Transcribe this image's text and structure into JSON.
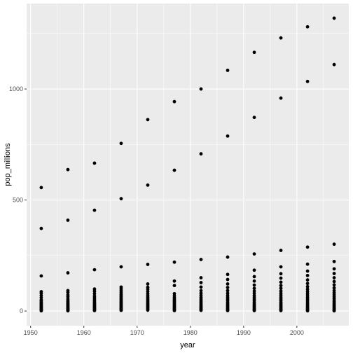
{
  "chart_data": {
    "type": "scatter",
    "title": "",
    "xlabel": "year",
    "ylabel": "pop_millions",
    "xlim": [
      1949.25,
      2009.75
    ],
    "ylim": [
      -66,
      1385
    ],
    "x_ticks": [
      1950,
      1960,
      1970,
      1980,
      1990,
      2000
    ],
    "y_ticks": [
      0,
      500,
      1000
    ],
    "grid": true,
    "legend": "none",
    "colors": {
      "panel": "#ebebeb",
      "grid": "#ffffff",
      "point": "#000000"
    },
    "series": [
      {
        "points": [
          [
            1952,
            556
          ],
          [
            1952,
            372
          ],
          [
            1952,
            158
          ],
          [
            1952,
            87
          ],
          [
            1952,
            80
          ],
          [
            1952,
            70
          ],
          [
            1952,
            60
          ],
          [
            1952,
            50
          ],
          [
            1952,
            46
          ],
          [
            1952,
            40
          ],
          [
            1952,
            36
          ],
          [
            1952,
            32
          ],
          [
            1952,
            28
          ],
          [
            1952,
            24
          ],
          [
            1952,
            20
          ],
          [
            1952,
            17
          ],
          [
            1952,
            14
          ],
          [
            1952,
            11
          ],
          [
            1952,
            8
          ],
          [
            1952,
            5
          ],
          [
            1952,
            3
          ],
          [
            1952,
            1
          ],
          [
            1957,
            637
          ],
          [
            1957,
            409
          ],
          [
            1957,
            172
          ],
          [
            1957,
            92
          ],
          [
            1957,
            84
          ],
          [
            1957,
            72
          ],
          [
            1957,
            64
          ],
          [
            1957,
            55
          ],
          [
            1957,
            48
          ],
          [
            1957,
            42
          ],
          [
            1957,
            37
          ],
          [
            1957,
            33
          ],
          [
            1957,
            29
          ],
          [
            1957,
            25
          ],
          [
            1957,
            21
          ],
          [
            1957,
            18
          ],
          [
            1957,
            15
          ],
          [
            1957,
            12
          ],
          [
            1957,
            9
          ],
          [
            1957,
            6
          ],
          [
            1957,
            3
          ],
          [
            1957,
            1
          ],
          [
            1962,
            666
          ],
          [
            1962,
            454
          ],
          [
            1962,
            186
          ],
          [
            1962,
            99
          ],
          [
            1962,
            89
          ],
          [
            1962,
            78
          ],
          [
            1962,
            67
          ],
          [
            1962,
            59
          ],
          [
            1962,
            51
          ],
          [
            1962,
            45
          ],
          [
            1962,
            40
          ],
          [
            1962,
            35
          ],
          [
            1962,
            31
          ],
          [
            1962,
            27
          ],
          [
            1962,
            23
          ],
          [
            1962,
            19
          ],
          [
            1962,
            16
          ],
          [
            1962,
            13
          ],
          [
            1962,
            10
          ],
          [
            1962,
            7
          ],
          [
            1962,
            4
          ],
          [
            1962,
            2
          ],
          [
            1967,
            755
          ],
          [
            1967,
            506
          ],
          [
            1967,
            199
          ],
          [
            1967,
            108
          ],
          [
            1967,
            100
          ],
          [
            1967,
            92
          ],
          [
            1967,
            84
          ],
          [
            1967,
            76
          ],
          [
            1967,
            70
          ],
          [
            1967,
            64
          ],
          [
            1967,
            58
          ],
          [
            1967,
            52
          ],
          [
            1967,
            46
          ],
          [
            1967,
            41
          ],
          [
            1967,
            36
          ],
          [
            1967,
            31
          ],
          [
            1967,
            27
          ],
          [
            1967,
            23
          ],
          [
            1967,
            19
          ],
          [
            1967,
            15
          ],
          [
            1967,
            11
          ],
          [
            1967,
            7
          ],
          [
            1967,
            3
          ],
          [
            1972,
            862
          ],
          [
            1972,
            567
          ],
          [
            1972,
            210
          ],
          [
            1972,
            122
          ],
          [
            1972,
            107
          ],
          [
            1972,
            98
          ],
          [
            1972,
            88
          ],
          [
            1972,
            78
          ],
          [
            1972,
            70
          ],
          [
            1972,
            63
          ],
          [
            1972,
            56
          ],
          [
            1972,
            50
          ],
          [
            1972,
            44
          ],
          [
            1972,
            38
          ],
          [
            1972,
            33
          ],
          [
            1972,
            28
          ],
          [
            1972,
            24
          ],
          [
            1972,
            20
          ],
          [
            1972,
            16
          ],
          [
            1972,
            12
          ],
          [
            1972,
            8
          ],
          [
            1972,
            4
          ],
          [
            1977,
            943
          ],
          [
            1977,
            634
          ],
          [
            1977,
            220
          ],
          [
            1977,
            135
          ],
          [
            1977,
            115
          ],
          [
            1977,
            78
          ],
          [
            1977,
            68
          ],
          [
            1977,
            60
          ],
          [
            1977,
            53
          ],
          [
            1977,
            47
          ],
          [
            1977,
            42
          ],
          [
            1977,
            37
          ],
          [
            1977,
            32
          ],
          [
            1977,
            27
          ],
          [
            1977,
            22
          ],
          [
            1977,
            17
          ],
          [
            1977,
            13
          ],
          [
            1977,
            9
          ],
          [
            1977,
            5
          ],
          [
            1977,
            2
          ],
          [
            1982,
            1000
          ],
          [
            1982,
            708
          ],
          [
            1982,
            232
          ],
          [
            1982,
            150
          ],
          [
            1982,
            128
          ],
          [
            1982,
            108
          ],
          [
            1982,
            92
          ],
          [
            1982,
            80
          ],
          [
            1982,
            70
          ],
          [
            1982,
            61
          ],
          [
            1982,
            53
          ],
          [
            1982,
            46
          ],
          [
            1982,
            40
          ],
          [
            1982,
            34
          ],
          [
            1982,
            28
          ],
          [
            1982,
            23
          ],
          [
            1982,
            18
          ],
          [
            1982,
            14
          ],
          [
            1982,
            10
          ],
          [
            1982,
            6
          ],
          [
            1982,
            3
          ],
          [
            1987,
            1084
          ],
          [
            1987,
            788
          ],
          [
            1987,
            243
          ],
          [
            1987,
            165
          ],
          [
            1987,
            142
          ],
          [
            1987,
            122
          ],
          [
            1987,
            106
          ],
          [
            1987,
            92
          ],
          [
            1987,
            80
          ],
          [
            1987,
            70
          ],
          [
            1987,
            62
          ],
          [
            1987,
            54
          ],
          [
            1987,
            47
          ],
          [
            1987,
            40
          ],
          [
            1987,
            34
          ],
          [
            1987,
            28
          ],
          [
            1987,
            23
          ],
          [
            1987,
            18
          ],
          [
            1987,
            13
          ],
          [
            1987,
            9
          ],
          [
            1987,
            5
          ],
          [
            1987,
            2
          ],
          [
            1992,
            1165
          ],
          [
            1992,
            872
          ],
          [
            1992,
            257
          ],
          [
            1992,
            184
          ],
          [
            1992,
            155
          ],
          [
            1992,
            135
          ],
          [
            1992,
            117
          ],
          [
            1992,
            102
          ],
          [
            1992,
            90
          ],
          [
            1992,
            80
          ],
          [
            1992,
            70
          ],
          [
            1992,
            62
          ],
          [
            1992,
            54
          ],
          [
            1992,
            47
          ],
          [
            1992,
            40
          ],
          [
            1992,
            34
          ],
          [
            1992,
            28
          ],
          [
            1992,
            23
          ],
          [
            1992,
            18
          ],
          [
            1992,
            13
          ],
          [
            1992,
            9
          ],
          [
            1992,
            5
          ],
          [
            1992,
            2
          ],
          [
            1997,
            1230
          ],
          [
            1997,
            959
          ],
          [
            1997,
            273
          ],
          [
            1997,
            199
          ],
          [
            1997,
            168
          ],
          [
            1997,
            148
          ],
          [
            1997,
            130
          ],
          [
            1997,
            115
          ],
          [
            1997,
            102
          ],
          [
            1997,
            90
          ],
          [
            1997,
            80
          ],
          [
            1997,
            71
          ],
          [
            1997,
            62
          ],
          [
            1997,
            54
          ],
          [
            1997,
            47
          ],
          [
            1997,
            40
          ],
          [
            1997,
            34
          ],
          [
            1997,
            28
          ],
          [
            1997,
            23
          ],
          [
            1997,
            18
          ],
          [
            1997,
            13
          ],
          [
            1997,
            9
          ],
          [
            1997,
            5
          ],
          [
            1997,
            2
          ],
          [
            2002,
            1280
          ],
          [
            2002,
            1034
          ],
          [
            2002,
            288
          ],
          [
            2002,
            211
          ],
          [
            2002,
            180
          ],
          [
            2002,
            160
          ],
          [
            2002,
            140
          ],
          [
            2002,
            124
          ],
          [
            2002,
            110
          ],
          [
            2002,
            98
          ],
          [
            2002,
            87
          ],
          [
            2002,
            77
          ],
          [
            2002,
            68
          ],
          [
            2002,
            60
          ],
          [
            2002,
            52
          ],
          [
            2002,
            45
          ],
          [
            2002,
            38
          ],
          [
            2002,
            32
          ],
          [
            2002,
            26
          ],
          [
            2002,
            21
          ],
          [
            2002,
            16
          ],
          [
            2002,
            12
          ],
          [
            2002,
            8
          ],
          [
            2002,
            4
          ],
          [
            2002,
            1
          ],
          [
            2007,
            1319
          ],
          [
            2007,
            1110
          ],
          [
            2007,
            301
          ],
          [
            2007,
            223
          ],
          [
            2007,
            190
          ],
          [
            2007,
            169
          ],
          [
            2007,
            150
          ],
          [
            2007,
            133
          ],
          [
            2007,
            118
          ],
          [
            2007,
            104
          ],
          [
            2007,
            92
          ],
          [
            2007,
            82
          ],
          [
            2007,
            73
          ],
          [
            2007,
            64
          ],
          [
            2007,
            56
          ],
          [
            2007,
            49
          ],
          [
            2007,
            42
          ],
          [
            2007,
            36
          ],
          [
            2007,
            30
          ],
          [
            2007,
            25
          ],
          [
            2007,
            20
          ],
          [
            2007,
            15
          ],
          [
            2007,
            11
          ],
          [
            2007,
            7
          ],
          [
            2007,
            3
          ],
          [
            2007,
            1
          ]
        ]
      }
    ]
  }
}
